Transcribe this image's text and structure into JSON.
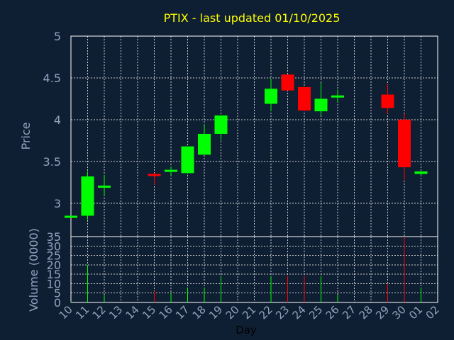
{
  "colors": {
    "background": "#0f1f33",
    "plot_border": "#ffffff",
    "grid": "#c8c8c8",
    "title": "#ffff00",
    "axis_text": "#8fa3c0",
    "up": "#00ff00",
    "down": "#ff0000",
    "day_label": "#000000"
  },
  "chart_data": [
    {
      "type": "candlestick",
      "title": "PTIX - last updated 01/10/2025",
      "ylabel": "Price",
      "ylim": [
        2.6,
        5
      ],
      "yticks": [
        "3",
        "3.5",
        "4",
        "4.5",
        "5"
      ],
      "ytick_values": [
        3,
        3.5,
        4,
        4.5,
        5
      ],
      "grid": true,
      "categories": [
        "10",
        "11",
        "12",
        "13",
        "14",
        "15",
        "16",
        "17",
        "18",
        "19",
        "20",
        "21",
        "22",
        "23",
        "24",
        "25",
        "26",
        "27",
        "28",
        "29",
        "30",
        "01",
        "02"
      ],
      "candles": [
        {
          "i": 0,
          "open": 2.85,
          "close": 2.85,
          "high": 2.85,
          "low": 2.85,
          "dir": "up"
        },
        {
          "i": 1,
          "open": 2.85,
          "close": 3.32,
          "high": 3.38,
          "low": 2.8,
          "dir": "up"
        },
        {
          "i": 2,
          "open": 3.21,
          "close": 3.21,
          "high": 3.34,
          "low": 3.09,
          "dir": "up"
        },
        {
          "i": 5,
          "open": 3.35,
          "close": 3.34,
          "high": 3.36,
          "low": 3.22,
          "dir": "down"
        },
        {
          "i": 6,
          "open": 3.38,
          "close": 3.4,
          "high": 3.44,
          "low": 3.33,
          "dir": "up"
        },
        {
          "i": 7,
          "open": 3.36,
          "close": 3.68,
          "high": 3.68,
          "low": 3.36,
          "dir": "up"
        },
        {
          "i": 8,
          "open": 3.58,
          "close": 3.83,
          "high": 3.95,
          "low": 3.58,
          "dir": "up"
        },
        {
          "i": 9,
          "open": 3.83,
          "close": 4.05,
          "high": 4.05,
          "low": 3.75,
          "dir": "up"
        },
        {
          "i": 12,
          "open": 4.19,
          "close": 4.37,
          "high": 4.49,
          "low": 4.1,
          "dir": "up"
        },
        {
          "i": 13,
          "open": 4.54,
          "close": 4.35,
          "high": 4.54,
          "low": 4.35,
          "dir": "down"
        },
        {
          "i": 14,
          "open": 4.39,
          "close": 4.11,
          "high": 4.39,
          "low": 4.1,
          "dir": "down"
        },
        {
          "i": 15,
          "open": 4.1,
          "close": 4.25,
          "high": 4.44,
          "low": 4.05,
          "dir": "up"
        },
        {
          "i": 16,
          "open": 4.27,
          "close": 4.29,
          "high": 4.36,
          "low": 4.21,
          "dir": "up"
        },
        {
          "i": 19,
          "open": 4.3,
          "close": 4.14,
          "high": 4.42,
          "low": 4.07,
          "dir": "down"
        },
        {
          "i": 20,
          "open": 4.0,
          "close": 3.43,
          "high": 4.07,
          "low": 3.28,
          "dir": "down"
        },
        {
          "i": 21,
          "open": 3.35,
          "close": 3.38,
          "high": 3.38,
          "low": 3.33,
          "dir": "up"
        }
      ]
    },
    {
      "type": "bar",
      "ylabel": "Volume (0000)",
      "xlabel": "Day",
      "ylim": [
        0,
        35
      ],
      "yticks": [
        "0",
        "5",
        "10",
        "15",
        "20",
        "25",
        "30",
        "35"
      ],
      "ytick_values": [
        0,
        5,
        10,
        15,
        20,
        25,
        30,
        35
      ],
      "bars": [
        {
          "i": 0,
          "value": 0.5,
          "dir": "up"
        },
        {
          "i": 1,
          "value": 20,
          "dir": "up"
        },
        {
          "i": 2,
          "value": 4,
          "dir": "up"
        },
        {
          "i": 5,
          "value": 6,
          "dir": "down"
        },
        {
          "i": 6,
          "value": 5,
          "dir": "up"
        },
        {
          "i": 7,
          "value": 8,
          "dir": "up"
        },
        {
          "i": 8,
          "value": 8,
          "dir": "up"
        },
        {
          "i": 9,
          "value": 14,
          "dir": "up"
        },
        {
          "i": 12,
          "value": 14,
          "dir": "up"
        },
        {
          "i": 13,
          "value": 14,
          "dir": "down"
        },
        {
          "i": 14,
          "value": 14,
          "dir": "down"
        },
        {
          "i": 15,
          "value": 14,
          "dir": "up"
        },
        {
          "i": 16,
          "value": 4,
          "dir": "up"
        },
        {
          "i": 19,
          "value": 10,
          "dir": "down"
        },
        {
          "i": 20,
          "value": 35,
          "dir": "down"
        },
        {
          "i": 21,
          "value": 8,
          "dir": "up"
        }
      ]
    }
  ]
}
